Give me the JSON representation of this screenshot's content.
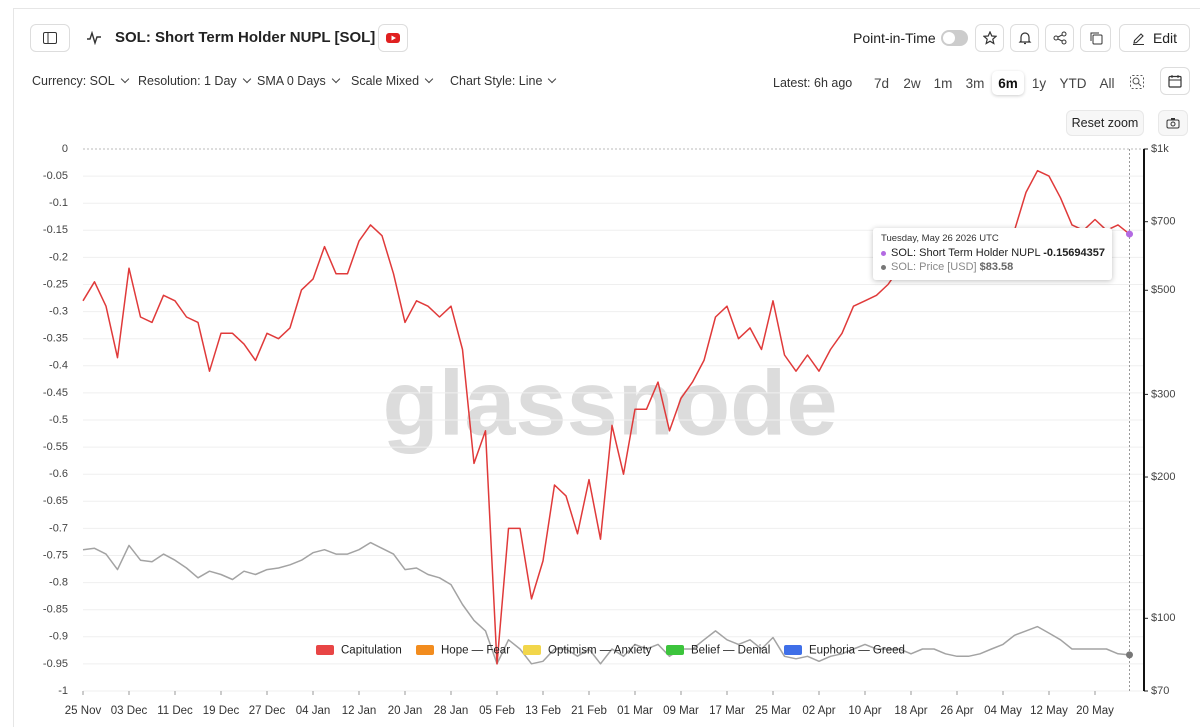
{
  "header": {
    "title": "SOL: Short Term Holder NUPL [SOL]",
    "point_in_time": "Point-in-Time",
    "edit": "Edit"
  },
  "toolbar": {
    "dropdowns": [
      "Currency: SOL",
      "Resolution: 1 Day",
      "SMA 0 Days",
      "Scale Mixed",
      "Chart Style: Line"
    ],
    "latest": "Latest: 6h ago",
    "ranges": [
      "7d",
      "2w",
      "1m",
      "3m",
      "6m",
      "1y",
      "YTD",
      "All"
    ],
    "reset_zoom": "Reset zoom"
  },
  "watermark": "glassnode",
  "chart_data": {
    "type": "line",
    "categories": [
      "25 Nov",
      null,
      null,
      null,
      "03 Dec",
      null,
      null,
      null,
      "11 Dec",
      null,
      null,
      null,
      "19 Dec",
      null,
      null,
      null,
      "27 Dec",
      null,
      null,
      null,
      "04 Jan",
      null,
      null,
      null,
      "12 Jan",
      null,
      null,
      null,
      "20 Jan",
      null,
      null,
      null,
      "28 Jan",
      null,
      null,
      null,
      "05 Feb",
      null,
      null,
      null,
      "13 Feb",
      null,
      null,
      null,
      "21 Feb",
      null,
      null,
      null,
      "01 Mar",
      null,
      null,
      null,
      "09 Mar",
      null,
      null,
      null,
      "17 Mar",
      null,
      null,
      null,
      "25 Mar",
      null,
      null,
      null,
      "02 Apr",
      null,
      null,
      null,
      "10 Apr",
      null,
      null,
      null,
      "18 Apr",
      null,
      null,
      null,
      "26 Apr",
      null,
      null,
      null,
      "04 May",
      null,
      null,
      null,
      "12 May",
      null,
      null,
      null,
      "20 May",
      null,
      null,
      null
    ],
    "series": [
      {
        "name": "SOL: Short Term Holder NUPL",
        "color": "#e03a3a",
        "values": [
          -0.28,
          -0.245,
          -0.29,
          -0.385,
          -0.22,
          -0.31,
          -0.32,
          -0.27,
          -0.28,
          -0.31,
          -0.32,
          -0.41,
          -0.34,
          -0.34,
          -0.36,
          -0.39,
          -0.34,
          -0.35,
          -0.33,
          -0.26,
          -0.24,
          -0.18,
          -0.23,
          -0.23,
          -0.17,
          -0.14,
          -0.16,
          -0.23,
          -0.32,
          -0.28,
          -0.29,
          -0.31,
          -0.29,
          -0.37,
          -0.58,
          -0.52,
          -0.95,
          -0.7,
          -0.7,
          -0.83,
          -0.76,
          -0.62,
          -0.64,
          -0.71,
          -0.61,
          -0.72,
          -0.51,
          -0.6,
          -0.48,
          -0.48,
          -0.43,
          -0.52,
          -0.46,
          -0.43,
          -0.39,
          -0.31,
          -0.29,
          -0.35,
          -0.33,
          -0.37,
          -0.28,
          -0.38,
          -0.41,
          -0.38,
          -0.41,
          -0.37,
          -0.34,
          -0.29,
          -0.28,
          -0.27,
          -0.25,
          -0.22,
          -0.23,
          -0.22,
          -0.2,
          -0.2,
          -0.18,
          -0.19,
          -0.16,
          -0.19,
          -0.21,
          -0.15,
          -0.08,
          -0.04,
          -0.05,
          -0.09,
          -0.14,
          -0.15,
          -0.13,
          -0.15,
          -0.14,
          -0.15694357
        ],
        "marker_color": "#b36ae2"
      },
      {
        "name": "SOL: Price [USD]",
        "color": "#a3a3a3",
        "axis": "y2",
        "values": [
          140,
          141,
          137,
          127,
          143,
          133,
          132,
          137,
          133,
          128,
          122,
          126,
          124,
          121,
          126,
          124,
          127,
          128,
          130,
          133,
          138,
          140,
          137,
          137,
          140,
          145,
          141,
          137,
          127,
          128,
          124,
          122,
          118,
          107,
          99,
          94,
          80,
          90,
          86,
          80,
          81,
          86,
          86,
          83,
          86,
          80,
          86,
          83,
          88,
          86,
          88,
          83,
          86,
          86,
          90,
          94,
          90,
          88,
          90,
          86,
          91,
          83,
          82,
          83,
          81,
          83,
          84,
          86,
          88,
          86,
          86,
          86,
          84,
          86,
          86,
          84,
          83,
          83,
          84,
          86,
          88,
          92,
          94,
          96,
          93,
          90,
          86,
          86,
          86,
          86,
          84,
          83.58
        ],
        "marker_color": "#777777"
      }
    ],
    "ylim": [
      -1,
      0
    ],
    "yticks": [
      0,
      -0.05,
      -0.1,
      -0.15,
      -0.2,
      -0.25,
      -0.3,
      -0.35,
      -0.4,
      -0.45,
      -0.5,
      -0.55,
      -0.6,
      -0.65,
      -0.7,
      -0.75,
      -0.8,
      -0.85,
      -0.9,
      -0.95,
      -1
    ],
    "y2lim": [
      70,
      1000
    ],
    "y2log": true,
    "y2ticks": [
      {
        "value": 1000,
        "label": "$1k"
      },
      {
        "value": 700,
        "label": "$700"
      },
      {
        "value": 500,
        "label": "$500"
      },
      {
        "value": 300,
        "label": "$300"
      },
      {
        "value": 200,
        "label": "$200"
      },
      {
        "value": 100,
        "label": "$100"
      },
      {
        "value": 70,
        "label": "$70"
      }
    ],
    "grid": true,
    "zones": [
      {
        "name": "Capitulation",
        "color": "#e84545"
      },
      {
        "name": "Hope — Fear",
        "color": "#f28c1e"
      },
      {
        "name": "Optimism — Anxiety",
        "color": "#f2d64b"
      },
      {
        "name": "Belief — Denial",
        "color": "#3cc43c"
      },
      {
        "name": "Euphoria — Greed",
        "color": "#3f6fe8"
      }
    ],
    "tooltip": {
      "date": "Tuesday, May 26 2026 UTC",
      "price_label": "$83.58"
    }
  }
}
